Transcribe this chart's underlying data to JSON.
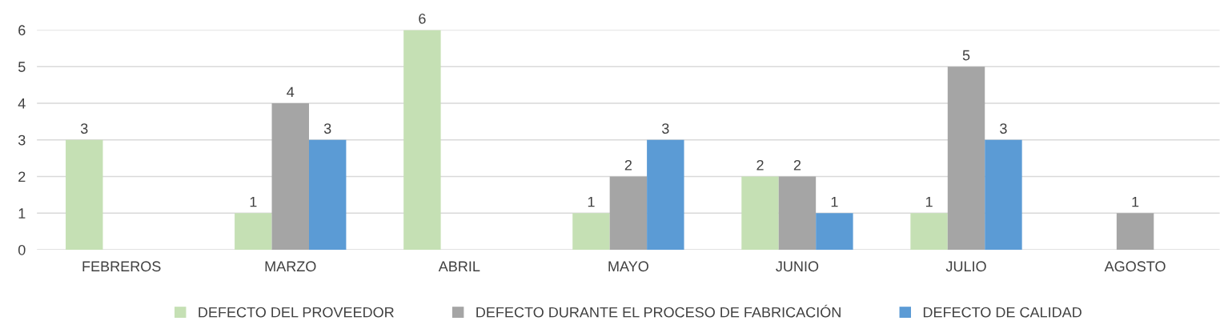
{
  "chart_data": {
    "type": "bar",
    "categories": [
      "FEBREROS",
      "MARZO",
      "ABRIL",
      "MAYO",
      "JUNIO",
      "JULIO",
      "AGOSTO"
    ],
    "series": [
      {
        "name": "DEFECTO DEL PROVEEDOR",
        "color": "#c5e0b4",
        "values": [
          3,
          1,
          6,
          1,
          2,
          1,
          null
        ]
      },
      {
        "name": "DEFECTO DURANTE EL PROCESO DE FABRICACIÓN",
        "color": "#a5a5a5",
        "values": [
          null,
          4,
          null,
          2,
          2,
          5,
          1
        ]
      },
      {
        "name": "DEFECTO DE CALIDAD",
        "color": "#5b9bd5",
        "values": [
          null,
          3,
          null,
          3,
          1,
          3,
          null
        ]
      }
    ],
    "ylim": [
      0,
      6
    ],
    "yticks": [
      0,
      1,
      2,
      3,
      4,
      5,
      6
    ],
    "grid": "y",
    "data_labels": true,
    "legend": "bottom"
  }
}
